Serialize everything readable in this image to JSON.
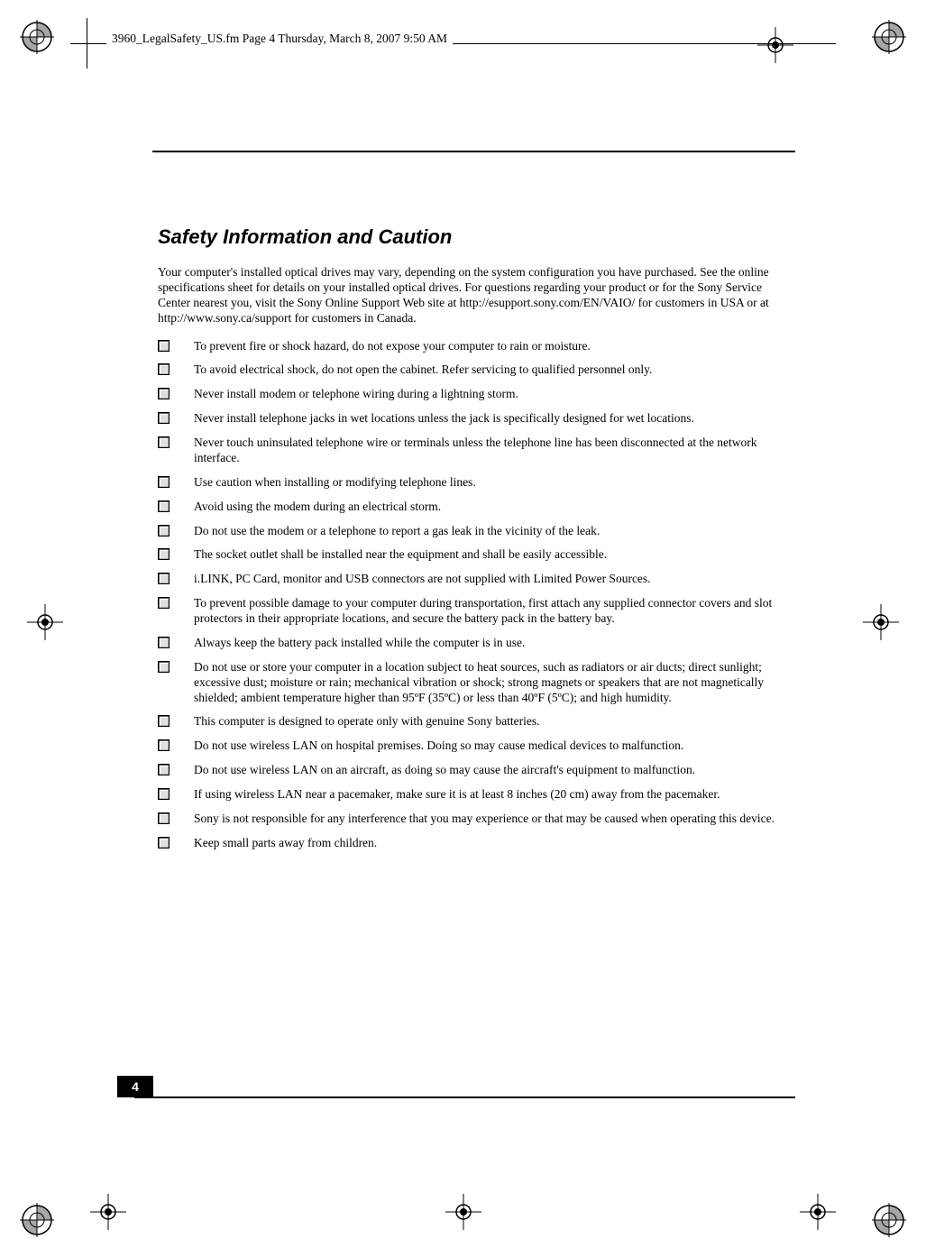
{
  "header": {
    "running_text": "3960_LegalSafety_US.fm  Page 4  Thursday, March 8, 2007  9:50 AM"
  },
  "page_number": "4",
  "section": {
    "title": "Safety Information and Caution",
    "intro": "Your computer's installed optical drives may vary, depending on the system configuration you have purchased. See the online specifications sheet for details on your installed optical drives. For questions regarding your product or for the Sony Service Center nearest you, visit the Sony Online Support Web site at http://esupport.sony.com/EN/VAIO/ for customers in USA or at http://www.sony.ca/support for customers in Canada."
  },
  "items": [
    "To prevent fire or shock hazard, do not expose your computer to rain or moisture.",
    "To avoid electrical shock, do not open the cabinet. Refer servicing to qualified personnel only.",
    "Never install modem or telephone wiring during a lightning storm.",
    "Never install telephone jacks in wet locations unless the jack is specifically designed for wet locations.",
    "Never touch uninsulated telephone wire or terminals unless the telephone line has been disconnected at the network interface.",
    "Use caution when installing or modifying telephone lines.",
    "Avoid using the modem during an electrical storm.",
    "Do not use the modem or a telephone to report a gas leak in the vicinity of the leak.",
    "The socket outlet shall be installed near the equipment and shall be easily accessible.",
    "i.LINK, PC Card, monitor and USB connectors are not supplied with Limited Power Sources.",
    "To prevent possible damage to your computer during transportation, first attach any supplied connector covers and slot protectors in their appropriate locations, and secure the battery pack in the battery bay.",
    "Always keep the battery pack installed while the computer is in use.",
    "Do not use or store your computer in a location subject to heat sources, such as radiators or air ducts; direct sunlight; excessive dust; moisture or rain; mechanical vibration or shock; strong magnets or speakers that are not magnetically shielded; ambient temperature higher than 95ºF (35ºC) or less than 40ºF (5ºC); and high humidity.",
    "This computer is designed to operate only with genuine Sony batteries.",
    "Do not use wireless LAN on hospital premises. Doing so may cause medical devices to malfunction.",
    "Do not use wireless LAN on an aircraft, as doing so may cause the aircraft's equipment to malfunction.",
    "If using wireless LAN near a pacemaker, make sure it is at least 8 inches (20 cm) away from the pacemaker.",
    "Sony is not responsible for any interference that you may experience or that may be caused when operating this device.",
    "Keep small parts away from children."
  ]
}
